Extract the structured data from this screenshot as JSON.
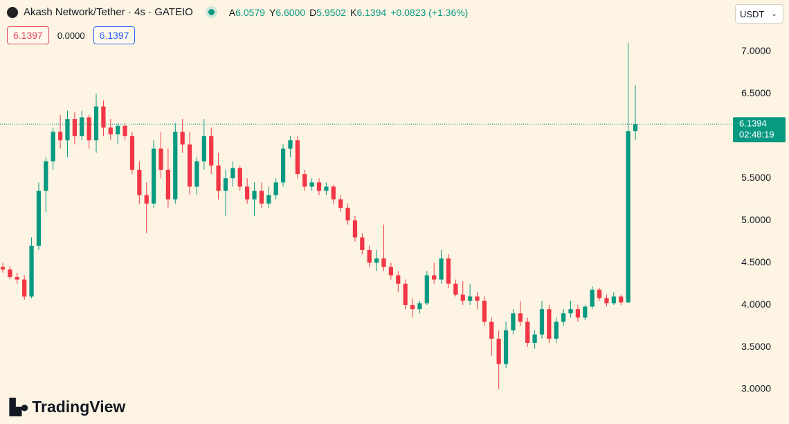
{
  "header": {
    "title": "Akash Network/Tether · 4s · GATEIO",
    "legend": [
      {
        "key": "A",
        "value": "6.0579"
      },
      {
        "key": "Y",
        "value": "6.6000"
      },
      {
        "key": "D",
        "value": "5.9502"
      },
      {
        "key": "K",
        "value": "6.1394"
      }
    ],
    "change": "+0.0823 (+1.36%)",
    "sell_price": "6.1397",
    "spread": "0.0000",
    "buy_price": "6.1397",
    "currency": "USDT"
  },
  "footer": {
    "brand": "TradingView"
  },
  "chart_data": {
    "type": "candlestick",
    "up_color": "#089981",
    "down_color": "#f23645",
    "ylim": [
      2.59,
      7.61
    ],
    "yticks": [
      {
        "value": 3,
        "label": "3.0000"
      },
      {
        "value": 3.5,
        "label": "3.5000"
      },
      {
        "value": 4,
        "label": "4.0000"
      },
      {
        "value": 4.5,
        "label": "4.5000"
      },
      {
        "value": 5,
        "label": "5.0000"
      },
      {
        "value": 5.5,
        "label": "5.5000"
      },
      {
        "value": 6,
        "label": "6.0000"
      },
      {
        "value": 6.5,
        "label": "6.5000"
      },
      {
        "value": 7,
        "label": "7.0000"
      }
    ],
    "last_price": {
      "value": 6.1394,
      "label": "6.1394"
    },
    "countdown": "02:48:19",
    "ohlc": [
      [
        4.45,
        4.5,
        4.38,
        4.42
      ],
      [
        4.42,
        4.46,
        4.3,
        4.33
      ],
      [
        4.33,
        4.38,
        4.25,
        4.3
      ],
      [
        4.3,
        4.35,
        4.06,
        4.1
      ],
      [
        4.1,
        4.8,
        4.08,
        4.7
      ],
      [
        4.7,
        5.45,
        4.65,
        5.35
      ],
      [
        5.35,
        5.75,
        5.1,
        5.7
      ],
      [
        5.7,
        6.1,
        5.6,
        6.05
      ],
      [
        6.05,
        6.25,
        5.85,
        5.95
      ],
      [
        5.95,
        6.3,
        5.75,
        6.2
      ],
      [
        6.2,
        6.28,
        5.9,
        6.0
      ],
      [
        6.0,
        6.3,
        5.95,
        6.22
      ],
      [
        6.22,
        6.25,
        5.85,
        5.95
      ],
      [
        5.95,
        6.5,
        5.8,
        6.35
      ],
      [
        6.35,
        6.42,
        6.0,
        6.1
      ],
      [
        6.1,
        6.2,
        5.95,
        6.02
      ],
      [
        6.02,
        6.15,
        5.9,
        6.12
      ],
      [
        6.12,
        6.15,
        5.95,
        6.0
      ],
      [
        6.0,
        6.05,
        5.55,
        5.6
      ],
      [
        5.6,
        5.7,
        5.2,
        5.3
      ],
      [
        5.3,
        5.45,
        4.85,
        5.2
      ],
      [
        5.2,
        5.95,
        5.15,
        5.85
      ],
      [
        5.85,
        6.05,
        5.5,
        5.6
      ],
      [
        5.6,
        5.85,
        5.15,
        5.25
      ],
      [
        5.25,
        6.15,
        5.2,
        6.05
      ],
      [
        6.05,
        6.2,
        5.8,
        5.9
      ],
      [
        5.9,
        6.05,
        5.3,
        5.4
      ],
      [
        5.4,
        5.75,
        5.3,
        5.7
      ],
      [
        5.7,
        6.2,
        5.6,
        6.0
      ],
      [
        6.0,
        6.1,
        5.55,
        5.65
      ],
      [
        5.65,
        5.8,
        5.25,
        5.35
      ],
      [
        5.35,
        5.6,
        5.05,
        5.5
      ],
      [
        5.5,
        5.7,
        5.4,
        5.62
      ],
      [
        5.62,
        5.65,
        5.35,
        5.4
      ],
      [
        5.4,
        5.5,
        5.2,
        5.25
      ],
      [
        5.25,
        5.45,
        5.05,
        5.35
      ],
      [
        5.35,
        5.45,
        5.15,
        5.2
      ],
      [
        5.2,
        5.4,
        5.15,
        5.3
      ],
      [
        5.3,
        5.5,
        5.25,
        5.45
      ],
      [
        5.45,
        5.9,
        5.4,
        5.85
      ],
      [
        5.85,
        6.0,
        5.75,
        5.95
      ],
      [
        5.95,
        6.0,
        5.5,
        5.55
      ],
      [
        5.55,
        5.6,
        5.35,
        5.4
      ],
      [
        5.4,
        5.5,
        5.35,
        5.45
      ],
      [
        5.45,
        5.5,
        5.3,
        5.35
      ],
      [
        5.35,
        5.45,
        5.3,
        5.4
      ],
      [
        5.4,
        5.42,
        5.2,
        5.25
      ],
      [
        5.25,
        5.3,
        5.1,
        5.15
      ],
      [
        5.15,
        5.2,
        4.95,
        5.0
      ],
      [
        5.0,
        5.05,
        4.75,
        4.8
      ],
      [
        4.8,
        4.85,
        4.6,
        4.65
      ],
      [
        4.65,
        4.7,
        4.45,
        4.5
      ],
      [
        4.5,
        4.65,
        4.4,
        4.55
      ],
      [
        4.55,
        4.95,
        4.4,
        4.45
      ],
      [
        4.45,
        4.5,
        4.3,
        4.35
      ],
      [
        4.35,
        4.4,
        4.15,
        4.25
      ],
      [
        4.25,
        4.3,
        3.95,
        4.0
      ],
      [
        4.0,
        4.08,
        3.85,
        3.95
      ],
      [
        3.95,
        4.05,
        3.9,
        4.02
      ],
      [
        4.02,
        4.4,
        4.0,
        4.35
      ],
      [
        4.35,
        4.5,
        4.25,
        4.3
      ],
      [
        4.3,
        4.65,
        4.25,
        4.55
      ],
      [
        4.55,
        4.6,
        4.2,
        4.25
      ],
      [
        4.25,
        4.3,
        4.1,
        4.12
      ],
      [
        4.12,
        4.28,
        4.0,
        4.05
      ],
      [
        4.05,
        4.25,
        4.0,
        4.1
      ],
      [
        4.1,
        4.15,
        3.95,
        4.05
      ],
      [
        4.05,
        4.1,
        3.75,
        3.8
      ],
      [
        3.8,
        3.85,
        3.4,
        3.6
      ],
      [
        3.6,
        3.7,
        3.0,
        3.3
      ],
      [
        3.3,
        3.8,
        3.25,
        3.7
      ],
      [
        3.7,
        3.95,
        3.65,
        3.9
      ],
      [
        3.9,
        4.05,
        3.75,
        3.8
      ],
      [
        3.8,
        3.85,
        3.5,
        3.55
      ],
      [
        3.55,
        3.7,
        3.48,
        3.65
      ],
      [
        3.65,
        4.05,
        3.6,
        3.95
      ],
      [
        3.95,
        4.0,
        3.55,
        3.6
      ],
      [
        3.6,
        3.85,
        3.55,
        3.8
      ],
      [
        3.8,
        3.95,
        3.75,
        3.9
      ],
      [
        3.9,
        4.05,
        3.85,
        3.95
      ],
      [
        3.95,
        4.0,
        3.8,
        3.85
      ],
      [
        3.85,
        4.0,
        3.82,
        3.98
      ],
      [
        3.98,
        4.22,
        3.95,
        4.18
      ],
      [
        4.18,
        4.2,
        4.05,
        4.08
      ],
      [
        4.08,
        4.12,
        3.98,
        4.02
      ],
      [
        4.02,
        4.15,
        4.0,
        4.1
      ],
      [
        4.1,
        4.12,
        4.0,
        4.03
      ],
      [
        4.03,
        7.1,
        4.02,
        6.0579
      ],
      [
        6.0579,
        6.6,
        5.9502,
        6.1394
      ]
    ]
  }
}
